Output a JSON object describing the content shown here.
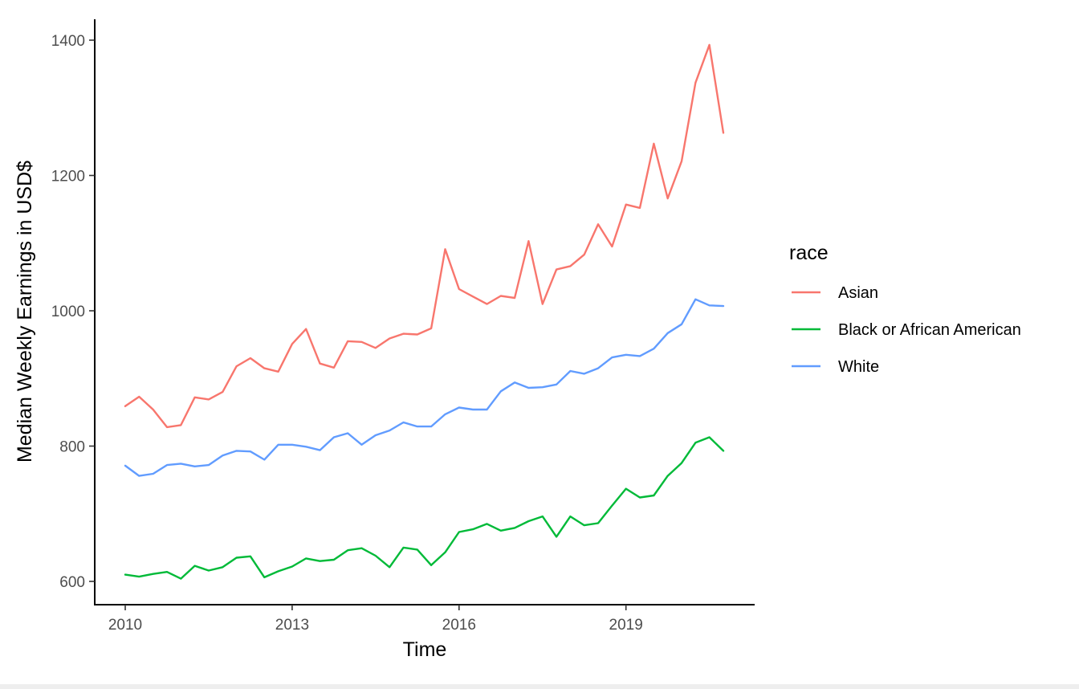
{
  "chart_data": {
    "type": "line",
    "title": "",
    "xlabel": "Time",
    "ylabel": "Median Weekly Earnings in USD$",
    "xlim": [
      2009.8,
      2021.3
    ],
    "ylim": [
      566,
      1431
    ],
    "x_ticks": [
      2010,
      2013,
      2016,
      2019
    ],
    "x_tick_labels": [
      "2010",
      "2013",
      "2016",
      "2019"
    ],
    "y_ticks": [
      600,
      800,
      1000,
      1200,
      1400
    ],
    "y_tick_labels": [
      "600",
      "800",
      "1000",
      "1200",
      "1400"
    ],
    "grid": false,
    "legend": {
      "title": "race",
      "position": "right"
    },
    "x": [
      2010.0,
      2010.25,
      2010.5,
      2010.75,
      2011.0,
      2011.25,
      2011.5,
      2011.75,
      2012.0,
      2012.25,
      2012.5,
      2012.75,
      2013.0,
      2013.25,
      2013.5,
      2013.75,
      2014.0,
      2014.25,
      2014.5,
      2014.75,
      2015.0,
      2015.25,
      2015.5,
      2015.75,
      2016.0,
      2016.25,
      2016.5,
      2016.75,
      2017.0,
      2017.25,
      2017.5,
      2017.75,
      2018.0,
      2018.25,
      2018.5,
      2018.75,
      2019.0,
      2019.25,
      2019.5,
      2019.75,
      2020.0,
      2020.25,
      2020.5,
      2020.75
    ],
    "series": [
      {
        "name": "Asian",
        "color": "#F8766D",
        "values": [
          859,
          873,
          854,
          828,
          831,
          872,
          869,
          880,
          918,
          930,
          915,
          910,
          951,
          973,
          922,
          916,
          955,
          954,
          945,
          959,
          966,
          965,
          974,
          1091,
          1032,
          1021,
          1010,
          1022,
          1019,
          1103,
          1010,
          1061,
          1066,
          1083,
          1128,
          1095,
          1157,
          1152,
          1247,
          1166,
          1221,
          1337,
          1393,
          1263
        ]
      },
      {
        "name": "Black or African American",
        "color": "#00BA38",
        "values": [
          610,
          607,
          611,
          614,
          604,
          623,
          616,
          621,
          635,
          637,
          606,
          615,
          622,
          634,
          630,
          632,
          646,
          649,
          638,
          621,
          650,
          647,
          624,
          643,
          673,
          677,
          685,
          675,
          679,
          689,
          696,
          666,
          696,
          683,
          686,
          712,
          737,
          724,
          727,
          756,
          775,
          805,
          813,
          793
        ]
      },
      {
        "name": "White",
        "color": "#619CFF",
        "values": [
          771,
          756,
          759,
          772,
          774,
          770,
          772,
          786,
          793,
          792,
          780,
          802,
          802,
          799,
          794,
          813,
          819,
          802,
          816,
          823,
          835,
          829,
          829,
          847,
          857,
          854,
          854,
          881,
          894,
          886,
          887,
          891,
          911,
          907,
          915,
          931,
          935,
          933,
          944,
          967,
          980,
          1017,
          1008,
          1007
        ]
      }
    ]
  }
}
